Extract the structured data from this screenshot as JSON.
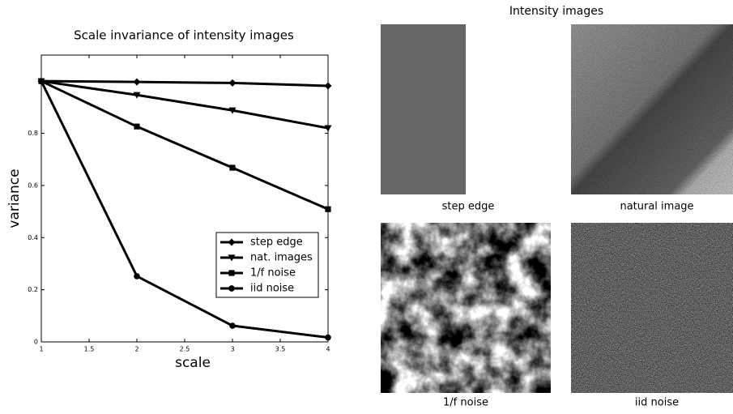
{
  "chart_data": {
    "type": "line",
    "title": "Scale invariance of intensity images",
    "xlabel": "scale",
    "ylabel": "variance",
    "x": [
      1,
      2,
      3,
      4
    ],
    "series": [
      {
        "name": "step edge",
        "color": "#000000",
        "marker": "diamond",
        "values": [
          1,
          0.997,
          0.993,
          0.982
        ]
      },
      {
        "name": "nat. images",
        "color": "#000000",
        "marker": "triangle-down",
        "values": [
          1,
          0.947,
          0.888,
          0.82
        ]
      },
      {
        "name": "1/f noise",
        "color": "#000000",
        "marker": "square",
        "values": [
          1,
          0.826,
          0.668,
          0.509
        ]
      },
      {
        "name": "iid noise",
        "color": "#000000",
        "marker": "circle",
        "values": [
          1,
          0.252,
          0.062,
          0.017
        ]
      }
    ],
    "xlim": [
      1,
      4
    ],
    "xticks": [
      1,
      1.5,
      2,
      2.5,
      3,
      3.5,
      4
    ],
    "ylim": [
      0,
      1.1
    ],
    "yticks": [
      0,
      0.2,
      0.4,
      0.6,
      0.8
    ],
    "grid": false,
    "legend": "lower right"
  },
  "images": {
    "title": "Intensity images",
    "captions": [
      "step edge",
      "natural image",
      "1/f noise",
      "iid noise"
    ]
  }
}
